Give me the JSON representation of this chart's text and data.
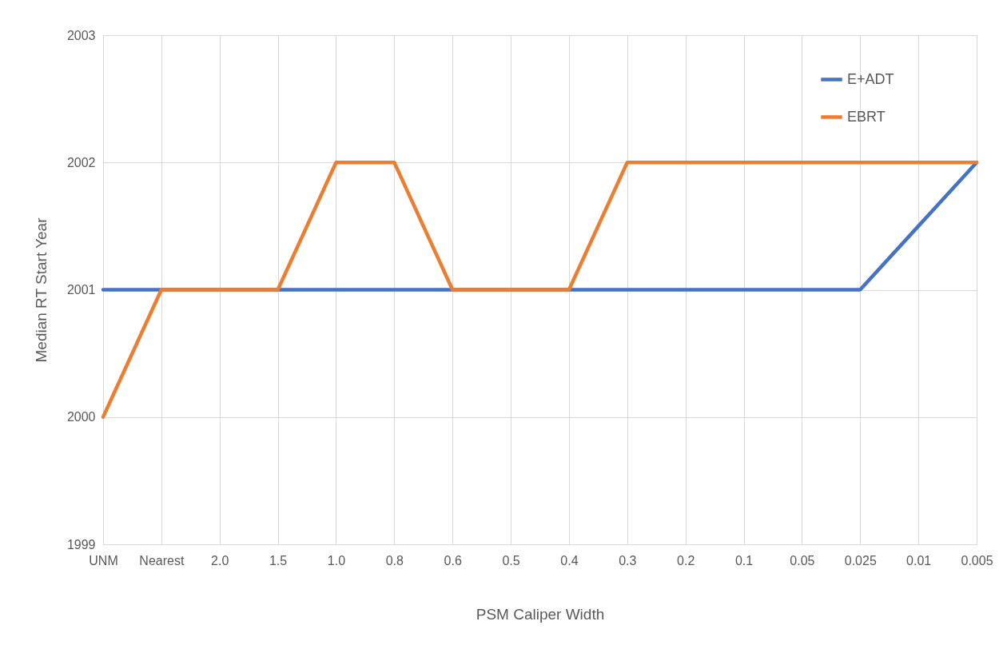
{
  "chart_data": {
    "type": "line",
    "xlabel": "PSM Caliper Width",
    "ylabel": "Median RT Start Year",
    "categories": [
      "UNM",
      "Nearest",
      "2.0",
      "1.5",
      "1.0",
      "0.8",
      "0.6",
      "0.5",
      "0.4",
      "0.3",
      "0.2",
      "0.1",
      "0.05",
      "0.025",
      "0.01",
      "0.005"
    ],
    "series": [
      {
        "name": "E+ADT",
        "color": "#4472c4",
        "values": [
          2001,
          2001,
          2001,
          2001,
          2001,
          2001,
          2001,
          2001,
          2001,
          2001,
          2001,
          2001,
          2001,
          2001,
          2001.5,
          2002
        ]
      },
      {
        "name": "EBRT",
        "color": "#ed7d31",
        "values": [
          2000,
          2001,
          2001,
          2001,
          2002,
          2002,
          2001,
          2001,
          2001,
          2002,
          2002,
          2002,
          2002,
          2002,
          2002,
          2002
        ]
      }
    ],
    "ylim": [
      1999,
      2003
    ],
    "yticks": [
      1999,
      2000,
      2001,
      2002,
      2003
    ],
    "grid": true,
    "legend": "top right",
    "marker": "none",
    "line_style": "solid"
  }
}
